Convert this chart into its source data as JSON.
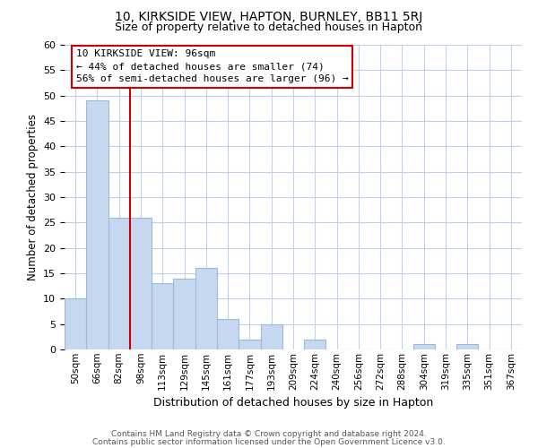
{
  "title": "10, KIRKSIDE VIEW, HAPTON, BURNLEY, BB11 5RJ",
  "subtitle": "Size of property relative to detached houses in Hapton",
  "xlabel": "Distribution of detached houses by size in Hapton",
  "ylabel": "Number of detached properties",
  "footer_line1": "Contains HM Land Registry data © Crown copyright and database right 2024.",
  "footer_line2": "Contains public sector information licensed under the Open Government Licence v3.0.",
  "bin_labels": [
    "50sqm",
    "66sqm",
    "82sqm",
    "98sqm",
    "113sqm",
    "129sqm",
    "145sqm",
    "161sqm",
    "177sqm",
    "193sqm",
    "209sqm",
    "224sqm",
    "240sqm",
    "256sqm",
    "272sqm",
    "288sqm",
    "304sqm",
    "319sqm",
    "335sqm",
    "351sqm",
    "367sqm"
  ],
  "bar_values": [
    10,
    49,
    26,
    26,
    13,
    14,
    16,
    6,
    2,
    5,
    0,
    2,
    0,
    0,
    0,
    0,
    1,
    0,
    1,
    0,
    0
  ],
  "bar_color": "#c5d8f0",
  "bar_edgecolor": "#a0b8d8",
  "vline_x": 3,
  "vline_color": "#cc0000",
  "ylim": [
    0,
    60
  ],
  "yticks": [
    0,
    5,
    10,
    15,
    20,
    25,
    30,
    35,
    40,
    45,
    50,
    55,
    60
  ],
  "annotation_title": "10 KIRKSIDE VIEW: 96sqm",
  "annotation_line1": "← 44% of detached houses are smaller (74)",
  "annotation_line2": "56% of semi-detached houses are larger (96) →",
  "background_color": "#ffffff",
  "grid_color": "#c0d0e8"
}
